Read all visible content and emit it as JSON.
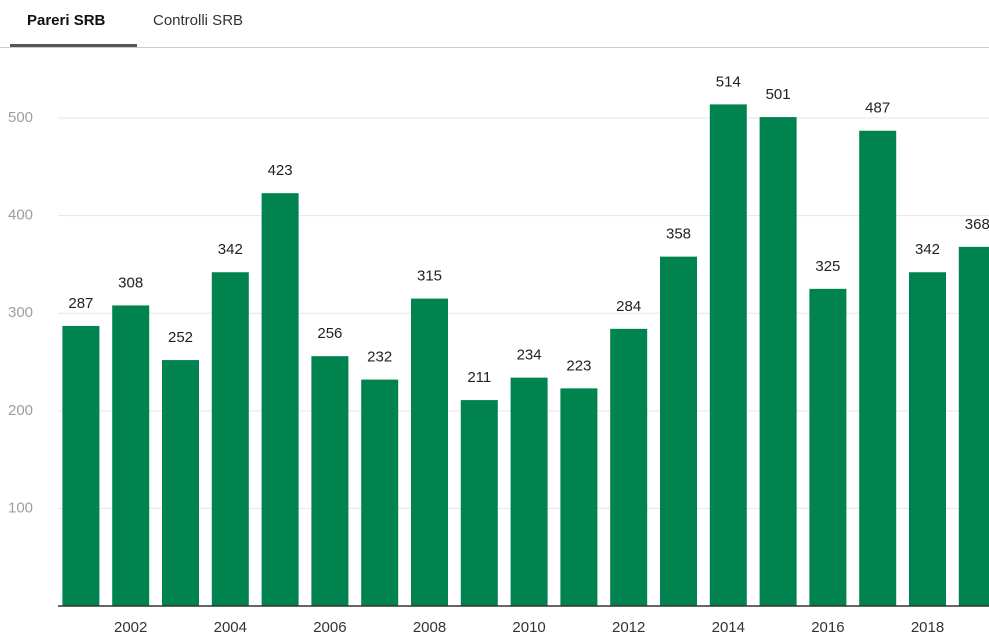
{
  "tabs": [
    {
      "label": "Pareri SRB",
      "active": true
    },
    {
      "label": "Controlli SRB",
      "active": false
    }
  ],
  "chart_data": {
    "type": "bar",
    "categories": [
      null,
      "2002",
      null,
      "2004",
      null,
      "2006",
      null,
      "2008",
      null,
      "2010",
      null,
      "2012",
      null,
      "2014",
      null,
      "2016",
      null,
      "2018",
      null
    ],
    "values": [
      287,
      308,
      252,
      342,
      423,
      256,
      232,
      315,
      211,
      234,
      223,
      284,
      358,
      514,
      501,
      325,
      487,
      342,
      368
    ],
    "color": "#00834f",
    "ylim": [
      0,
      560
    ],
    "yticks": [
      100,
      200,
      300,
      400,
      500
    ],
    "grid": true
  }
}
